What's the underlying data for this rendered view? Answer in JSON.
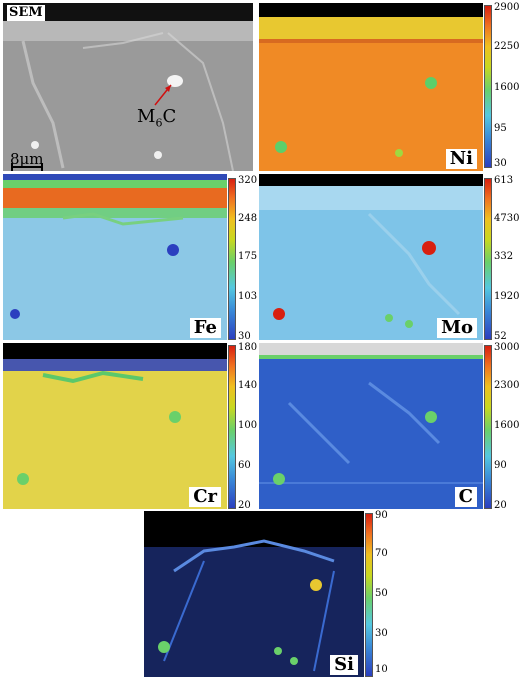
{
  "panels": {
    "sem": {
      "label": "SEM",
      "phase_base": "M",
      "phase_sub": "6",
      "phase_tail": "C",
      "scale": "8µm"
    },
    "ni": {
      "label": "Ni",
      "ticks": [
        "2900",
        "2250",
        "1600",
        "95",
        "30"
      ]
    },
    "fe": {
      "label": "Fe",
      "ticks": [
        "320",
        "248",
        "175",
        "103",
        "30"
      ]
    },
    "mo": {
      "label": "Mo",
      "ticks": [
        "613",
        "4730",
        "332",
        "1920",
        "52"
      ]
    },
    "cr": {
      "label": "Cr",
      "ticks": [
        "180",
        "140",
        "100",
        "60",
        "20"
      ]
    },
    "c": {
      "label": "C",
      "ticks": [
        "3000",
        "2300",
        "1600",
        "90",
        "20"
      ]
    },
    "si": {
      "label": "Si",
      "ticks": [
        "90",
        "70",
        "50",
        "30",
        "10"
      ]
    }
  },
  "colors": {
    "ni_bg": "#f08a25",
    "fe_bg": "#8cc8e6",
    "mo_bg": "#7ec4e8",
    "cr_bg": "#e2d34a",
    "c_bg": "#2f5fc8",
    "si_bg": "#16245c"
  }
}
